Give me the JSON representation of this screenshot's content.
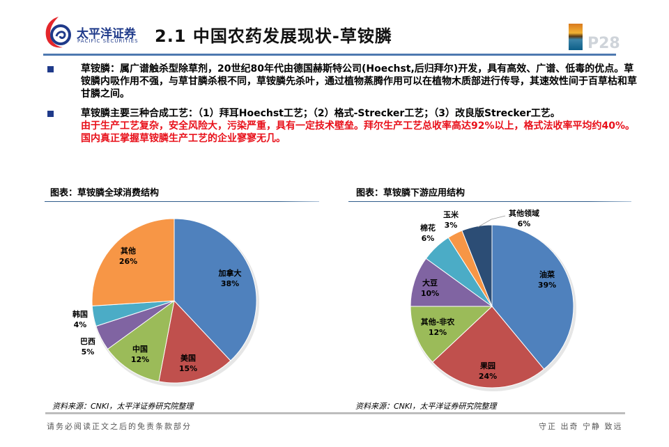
{
  "header": {
    "logo_cn": "太平洋证券",
    "logo_en": "PACIFIC SECURITIES",
    "title": "2.1 中国农药发展现状-草铵膦",
    "page_number": "P28",
    "accent_color": "#4e79b0"
  },
  "bullets": [
    {
      "text": "草铵膦：属广谱触杀型除草剂，20世纪80年代由德国赫斯特公司(Hoechst,后归拜尔)开发，具有高效、广谱、低毒的优点。草铵膦内吸作用不强，与草甘膦杀根不同，草铵膦先杀叶，通过植物蒸腾作用可以在植物木质部进行传导，其速效性间于百草枯和草甘膦之间。",
      "highlight": ""
    },
    {
      "text": "草铵膦主要三种合成工艺：（1）拜耳Hoechst工艺；（2）格式-Strecker工艺；（3）改良版Strecker工艺。",
      "highlight": "由于生产工艺复杂，安全风险大，污染严重，具有一定技术壁垒。拜尔生产工艺总收率高达92%以上，格式法收率平均约40%。国内真正掌握草铵膦生产工艺的企业寥寥无几。"
    }
  ],
  "chart_data": [
    {
      "type": "pie",
      "title": "图表：草铵膦全球消费结构",
      "categories": [
        "加拿大",
        "美国",
        "中国",
        "巴西",
        "韩国",
        "其他"
      ],
      "values": [
        38,
        15,
        12,
        5,
        4,
        26
      ],
      "labels": [
        "38%",
        "15%",
        "12%",
        "5%",
        "4%",
        "26%"
      ],
      "colors": [
        "#4f81bd",
        "#c0504d",
        "#9bbb59",
        "#8064a2",
        "#4bacc6",
        "#f79646"
      ],
      "start_angle": "12 o'clock, clockwise",
      "source": "资料来源：CNKI，太平洋证券研究院整理"
    },
    {
      "type": "pie",
      "title": "图表：草铵膦下游应用结构",
      "categories": [
        "油菜",
        "果园",
        "其他-非农",
        "大豆",
        "棉花",
        "玉米",
        "其他领域"
      ],
      "values": [
        39,
        24,
        12,
        10,
        6,
        3,
        6
      ],
      "labels": [
        "39%",
        "24%",
        "12%",
        "10%",
        "6%",
        "3%",
        "6%"
      ],
      "colors": [
        "#4f81bd",
        "#c0504d",
        "#9bbb59",
        "#8064a2",
        "#4bacc6",
        "#f79646",
        "#2c4d75"
      ],
      "start_angle": "12 o'clock, clockwise",
      "source": "资料来源：CNKI，太平洋证券研究院整理"
    }
  ],
  "charts_text": {
    "left_title": "图表：草铵膦全球消费结构",
    "right_title": "图表：草铵膦下游应用结构",
    "left_source": "资料来源：CNKI，太平洋证券研究院整理",
    "right_source": "资料来源：CNKI，太平洋证券研究院整理"
  },
  "footer": {
    "left": "请务必阅读正文之后的免责条款部分",
    "right": "守正 出奇 宁静 致远"
  }
}
